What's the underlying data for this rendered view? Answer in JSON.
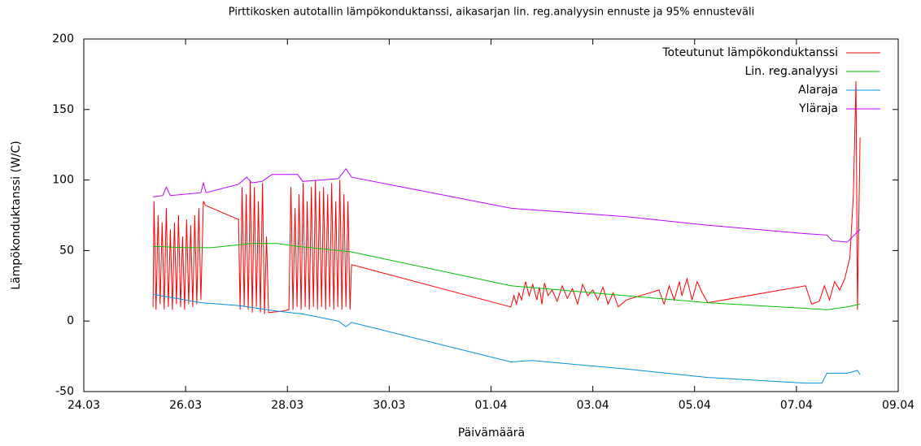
{
  "chart_data": {
    "type": "line",
    "title": "Pirttikosken autotallin lämpökonduktanssi, aikasarjan lin. reg.analyysin ennuste ja 95% ennusteväli",
    "x_label": "Päivämäärä",
    "y_label": "Lämpökonduktanssi (W/C)",
    "xlim": [
      0,
      16
    ],
    "xticks": [
      {
        "value": 0,
        "label": "24.03"
      },
      {
        "value": 2,
        "label": "26.03"
      },
      {
        "value": 4,
        "label": "28.03"
      },
      {
        "value": 6,
        "label": "30.03"
      },
      {
        "value": 8,
        "label": "01.04"
      },
      {
        "value": 10,
        "label": "03.04"
      },
      {
        "value": 12,
        "label": "05.04"
      },
      {
        "value": 14,
        "label": "07.04"
      },
      {
        "value": 16,
        "label": "09.04"
      }
    ],
    "ylim": [
      -50,
      200
    ],
    "yticks": [
      -50,
      0,
      50,
      100,
      150,
      200
    ],
    "grid": false,
    "legend": "top-right",
    "series": [
      {
        "name": "Toteutunut lämpökonduktanssi",
        "color": "#ff0000",
        "x": [
          1.36,
          1.38,
          1.42,
          1.46,
          1.5,
          1.54,
          1.58,
          1.62,
          1.66,
          1.7,
          1.74,
          1.78,
          1.82,
          1.86,
          1.9,
          1.94,
          1.98,
          2.02,
          2.06,
          2.1,
          2.14,
          2.18,
          2.22,
          2.26,
          2.3,
          2.35,
          2.39,
          3.04,
          3.07,
          3.11,
          3.15,
          3.19,
          3.23,
          3.27,
          3.31,
          3.35,
          3.39,
          3.43,
          3.47,
          3.51,
          3.55,
          3.59,
          3.63,
          3.9,
          4.03,
          4.07,
          4.11,
          4.15,
          4.19,
          4.23,
          4.27,
          4.31,
          4.35,
          4.39,
          4.43,
          4.47,
          4.51,
          4.55,
          4.59,
          4.63,
          4.67,
          4.71,
          4.75,
          4.79,
          4.83,
          4.87,
          4.91,
          4.95,
          4.99,
          5.03,
          5.07,
          5.11,
          5.15,
          5.19,
          5.23,
          5.26,
          8.39,
          8.45,
          8.5,
          8.55,
          8.6,
          8.68,
          8.75,
          8.82,
          8.9,
          8.95,
          9.0,
          9.05,
          9.12,
          9.2,
          9.3,
          9.4,
          9.5,
          9.6,
          9.7,
          9.8,
          9.9,
          10.0,
          10.1,
          10.2,
          10.3,
          10.4,
          10.5,
          10.66,
          11.3,
          11.4,
          11.5,
          11.6,
          11.7,
          11.75,
          11.85,
          11.95,
          12.05,
          12.15,
          12.26,
          14.18,
          14.3,
          14.45,
          14.55,
          14.65,
          14.75,
          14.85,
          14.95,
          15.05,
          15.12,
          15.17,
          15.2,
          15.25
        ],
        "values": [
          10,
          85,
          8,
          75,
          12,
          70,
          8,
          80,
          10,
          65,
          8,
          70,
          12,
          75,
          10,
          60,
          8,
          72,
          12,
          68,
          10,
          75,
          12,
          80,
          15,
          85,
          82,
          72,
          8,
          95,
          10,
          90,
          8,
          100,
          6,
          95,
          10,
          85,
          6,
          98,
          5,
          60,
          6,
          7,
          8,
          95,
          8,
          80,
          10,
          90,
          8,
          98,
          10,
          85,
          8,
          95,
          10,
          100,
          8,
          92,
          10,
          95,
          8,
          90,
          10,
          98,
          8,
          85,
          10,
          100,
          8,
          90,
          10,
          85,
          8,
          40,
          10,
          18,
          12,
          20,
          15,
          28,
          18,
          26,
          15,
          24,
          12,
          27,
          18,
          22,
          14,
          25,
          16,
          23,
          12,
          26,
          18,
          22,
          15,
          24,
          12,
          20,
          10,
          15,
          22,
          12,
          25,
          15,
          28,
          18,
          30,
          15,
          28,
          20,
          13,
          25,
          12,
          14,
          25,
          15,
          28,
          22,
          30,
          45,
          90,
          170,
          8,
          130
        ]
      },
      {
        "name": "Lin. reg.analyysi",
        "color": "#00c000",
        "x": [
          1.36,
          2.0,
          2.5,
          3.3,
          3.8,
          4.2,
          5.26,
          8.39,
          10.66,
          12.26,
          14.18,
          14.6,
          15.0,
          15.25
        ],
        "values": [
          53,
          52,
          52,
          55,
          55,
          53,
          49,
          25,
          18,
          13,
          9,
          8,
          10,
          12
        ]
      },
      {
        "name": "Alaraja",
        "color": "#0090e0",
        "x": [
          1.36,
          2.3,
          3.04,
          3.8,
          4.3,
          5.0,
          5.15,
          5.26,
          8.39,
          8.8,
          10.66,
          12.26,
          14.18,
          14.5,
          14.6,
          15.0,
          15.2,
          15.25
        ],
        "values": [
          19,
          13,
          11,
          7,
          5,
          0,
          -4,
          -1,
          -29,
          -28,
          -34,
          -40,
          -44,
          -44,
          -37,
          -37,
          -35,
          -38
        ]
      },
      {
        "name": "Yläraja",
        "color": "#c000ff",
        "x": [
          1.36,
          1.55,
          1.62,
          1.7,
          2.3,
          2.35,
          2.4,
          3.04,
          3.2,
          3.3,
          3.5,
          3.7,
          4.2,
          4.3,
          5.0,
          5.15,
          5.26,
          8.39,
          10.66,
          12.26,
          14.18,
          14.6,
          14.7,
          15.0,
          15.25
        ],
        "values": [
          88,
          89,
          95,
          89,
          91,
          98,
          91,
          97,
          102,
          98,
          99,
          104,
          104,
          99,
          101,
          108,
          102,
          80,
          74,
          68,
          62,
          61,
          57,
          56,
          65
        ]
      }
    ]
  }
}
